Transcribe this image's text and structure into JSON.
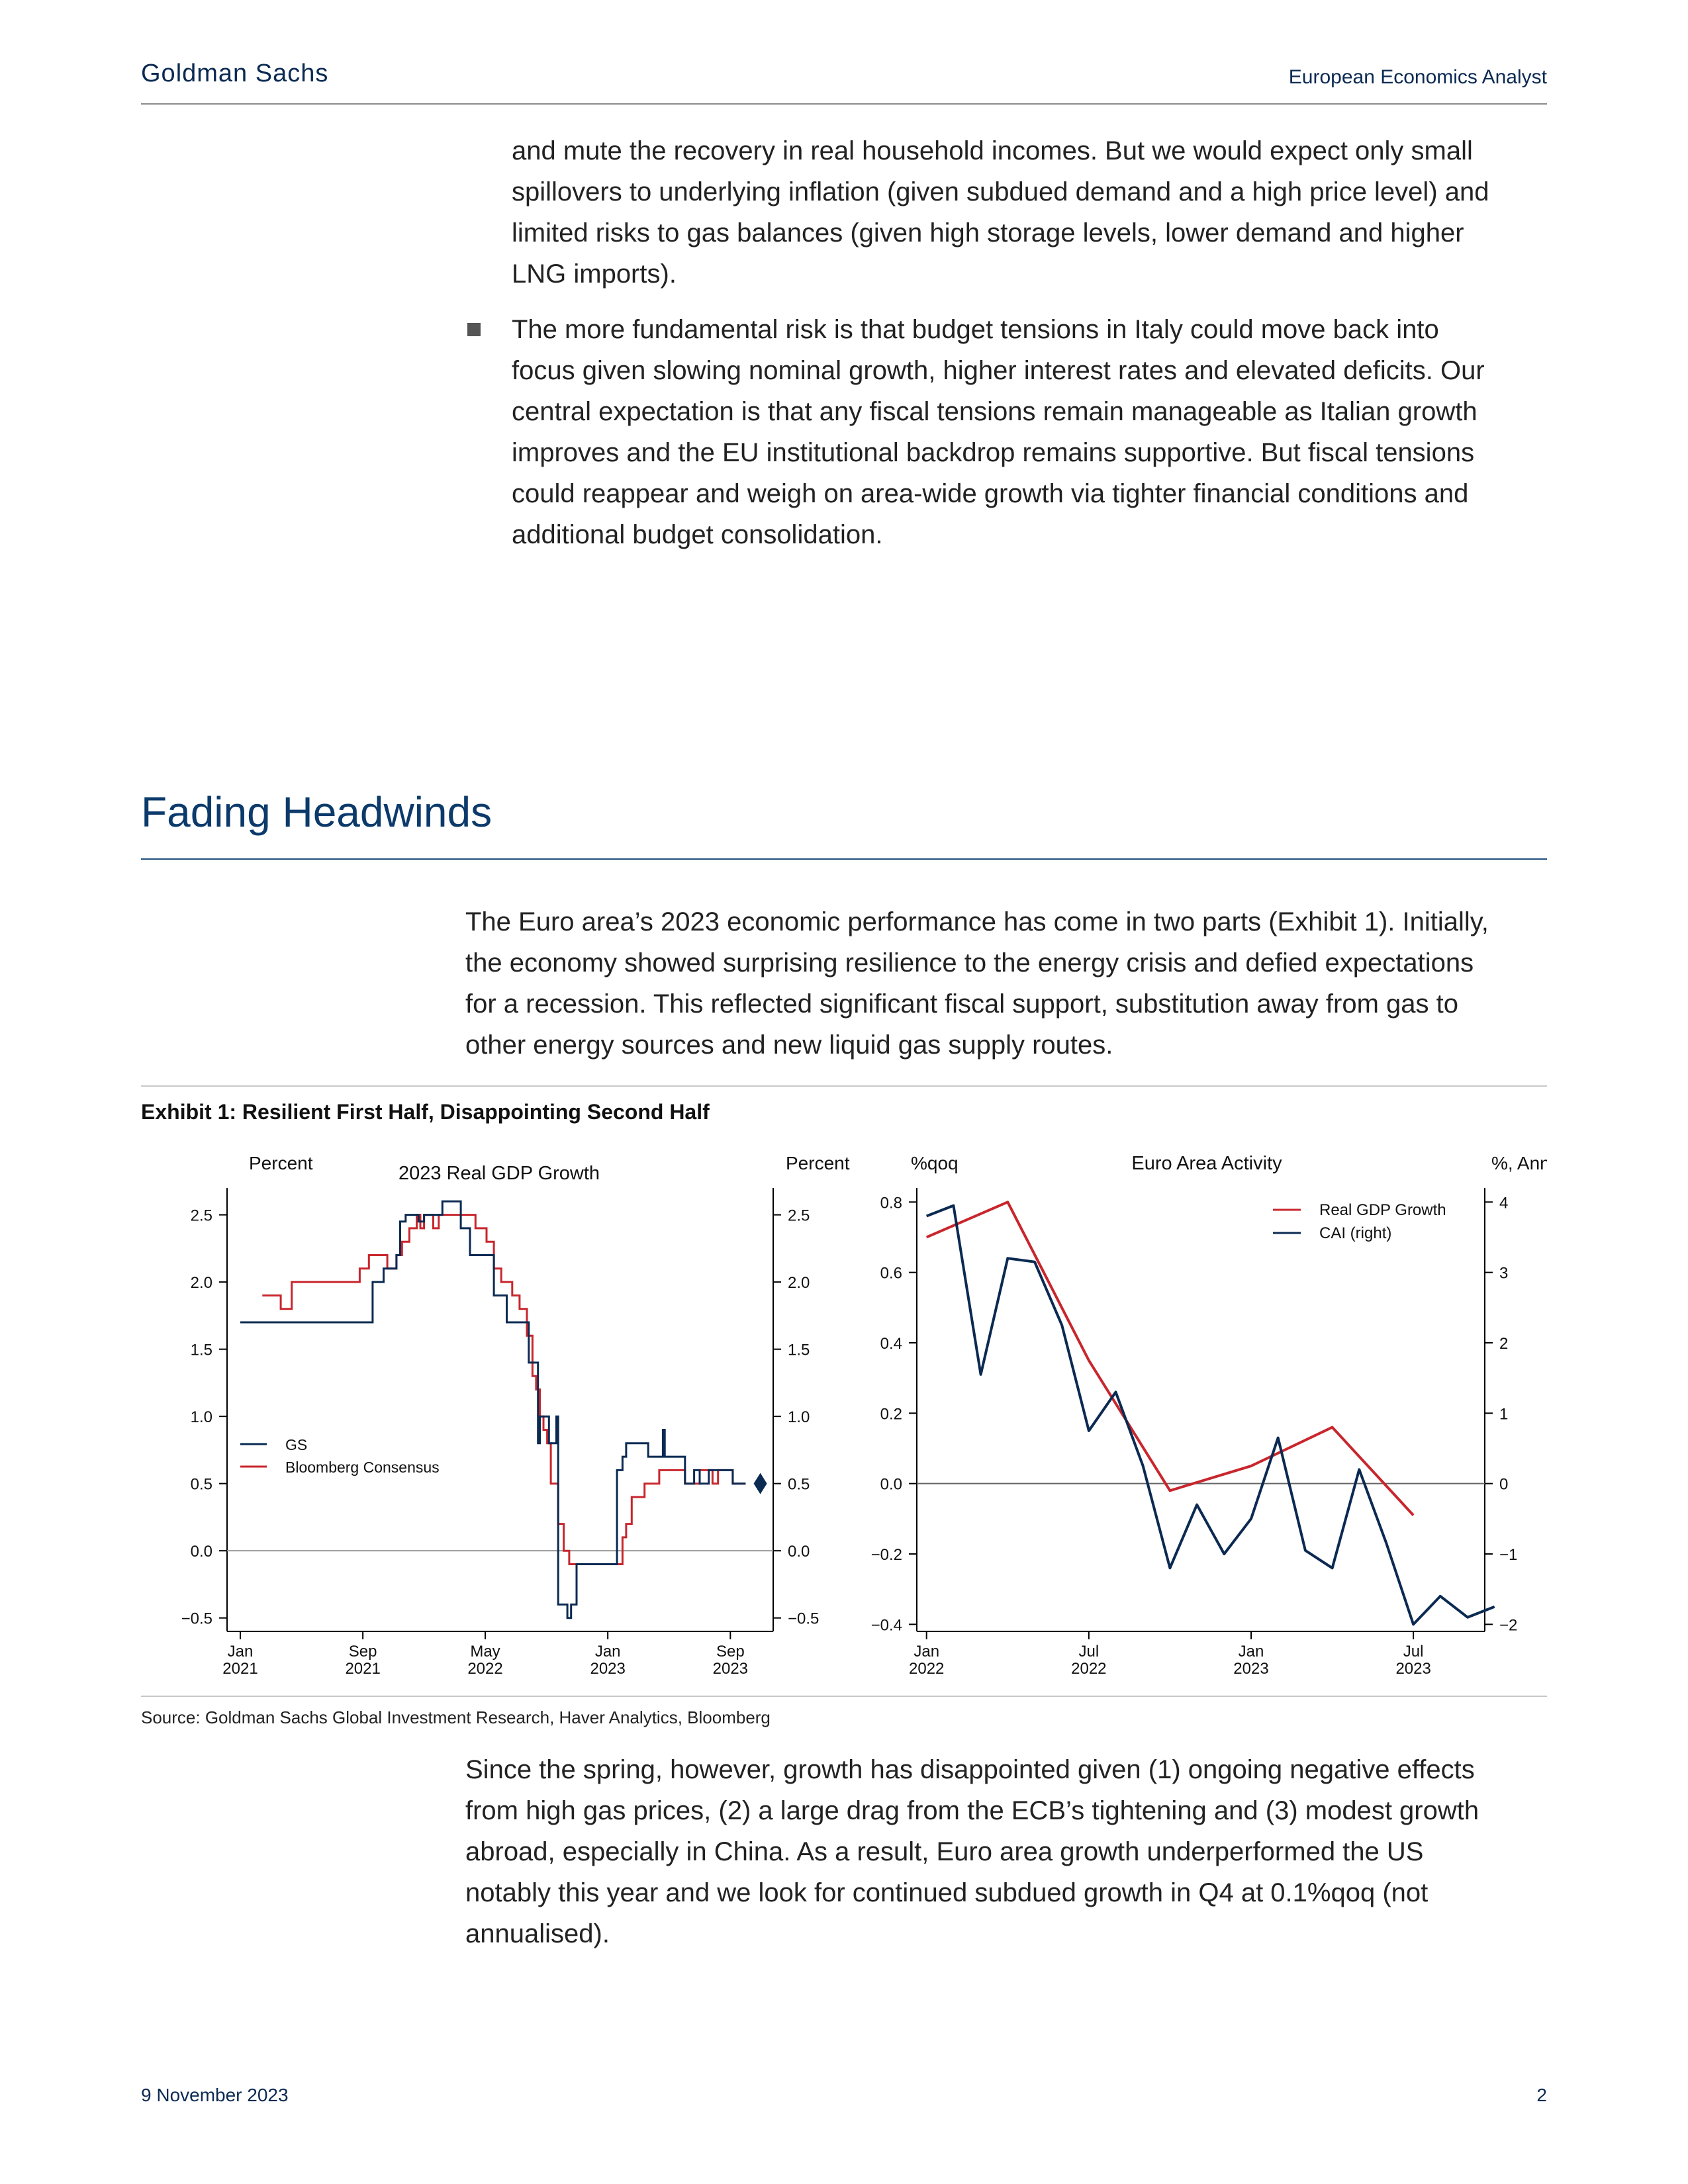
{
  "header": {
    "brand": "Goldman Sachs",
    "publication": "European Economics Analyst"
  },
  "intro_paragraph": [
    "and mute the recovery in real household incomes. But we would expect only small",
    "spillovers to underlying inflation (given subdued demand and a high price level) and",
    "limited risks to gas balances (given high storage levels, lower demand and higher",
    "LNG imports)."
  ],
  "bullet_paragraph": [
    "The more fundamental risk is that budget tensions in Italy could move back into",
    "focus given slowing nominal growth, higher interest rates and elevated deficits. Our",
    "central expectation is that any fiscal tensions remain manageable as Italian growth",
    "improves and the EU institutional backdrop remains supportive. But fiscal tensions",
    "could reappear and weigh on area-wide growth via tighter financial conditions and",
    "additional budget consolidation."
  ],
  "section_title": "Fading Headwinds",
  "section_paragraph_1": [
    "The Euro area’s 2023 economic performance has come in two parts (Exhibit 1). Initially,",
    "the economy showed surprising resilience to the energy crisis and defied expectations",
    "for a recession. This reflected significant fiscal support, substitution away from gas to",
    "other energy sources and new liquid gas supply routes."
  ],
  "exhibit_title": "Exhibit 1: Resilient First Half, Disappointing Second Half",
  "source": "Source: Goldman Sachs Global Investment Research, Haver Analytics, Bloomberg",
  "section_paragraph_2": [
    "Since the spring, however, growth has disappointed given (1) ongoing negative effects",
    "from high gas prices, (2) a large drag from the ECB’s tightening and (3) modest growth",
    "abroad, especially in China. As a result, Euro area growth underperformed the US",
    "notably this year and we look for continued subdued growth in Q4 at 0.1%qoq (not",
    "annualised)."
  ],
  "footer": {
    "date": "9 November 2023",
    "page": "2"
  },
  "colors": {
    "navy": "#0b2a52",
    "red": "#c8262d"
  },
  "chart_data": [
    {
      "type": "line",
      "title": "2023 Real GDP Growth",
      "ylabel_left": "Percent",
      "ylabel_right": "Percent",
      "ylim": [
        -0.6,
        2.7
      ],
      "yticks": [
        "2.5",
        "2.0",
        "1.5",
        "1.0",
        "0.5",
        "0.0",
        "−0.5"
      ],
      "ytick_values": [
        2.5,
        2.0,
        1.5,
        1.0,
        0.5,
        0.0,
        -0.5
      ],
      "xlim": [
        2021.0,
        2023.9
      ],
      "xticks": [
        {
          "x": 2021.0,
          "l1": "Jan",
          "l2": "2021"
        },
        {
          "x": 2021.667,
          "l1": "Sep",
          "l2": "2021"
        },
        {
          "x": 2022.333,
          "l1": "May",
          "l2": "2022"
        },
        {
          "x": 2023.0,
          "l1": "Jan",
          "l2": "2023"
        },
        {
          "x": 2023.667,
          "l1": "Sep",
          "l2": "2023"
        }
      ],
      "legend": [
        "GS",
        "Bloomberg Consensus"
      ],
      "legend_position": "bottom-left",
      "series": [
        {
          "name": "GS",
          "color": "#0b2a52",
          "step": true,
          "points": [
            [
              2021.0,
              1.7
            ],
            [
              2021.72,
              1.7
            ],
            [
              2021.72,
              2.0
            ],
            [
              2021.78,
              2.0
            ],
            [
              2021.78,
              2.1
            ],
            [
              2021.85,
              2.1
            ],
            [
              2021.85,
              2.2
            ],
            [
              2021.87,
              2.2
            ],
            [
              2021.87,
              2.45
            ],
            [
              2021.9,
              2.45
            ],
            [
              2021.9,
              2.5
            ],
            [
              2021.97,
              2.5
            ],
            [
              2021.97,
              2.45
            ],
            [
              2022.0,
              2.45
            ],
            [
              2022.0,
              2.5
            ],
            [
              2022.1,
              2.5
            ],
            [
              2022.1,
              2.6
            ],
            [
              2022.2,
              2.6
            ],
            [
              2022.2,
              2.4
            ],
            [
              2022.25,
              2.4
            ],
            [
              2022.25,
              2.2
            ],
            [
              2022.38,
              2.2
            ],
            [
              2022.38,
              1.9
            ],
            [
              2022.45,
              1.9
            ],
            [
              2022.45,
              1.7
            ],
            [
              2022.57,
              1.7
            ],
            [
              2022.57,
              1.4
            ],
            [
              2022.62,
              1.4
            ],
            [
              2022.62,
              0.8
            ],
            [
              2022.63,
              0.8
            ],
            [
              2022.63,
              1.0
            ],
            [
              2022.68,
              1.0
            ],
            [
              2022.68,
              0.8
            ],
            [
              2022.72,
              0.8
            ],
            [
              2022.72,
              1.0
            ],
            [
              2022.73,
              1.0
            ],
            [
              2022.73,
              -0.4
            ],
            [
              2022.78,
              -0.4
            ],
            [
              2022.78,
              -0.5
            ],
            [
              2022.8,
              -0.5
            ],
            [
              2022.8,
              -0.4
            ],
            [
              2022.83,
              -0.4
            ],
            [
              2022.83,
              -0.1
            ],
            [
              2023.05,
              -0.1
            ],
            [
              2023.05,
              0.6
            ],
            [
              2023.08,
              0.6
            ],
            [
              2023.08,
              0.7
            ],
            [
              2023.1,
              0.7
            ],
            [
              2023.1,
              0.8
            ],
            [
              2023.22,
              0.8
            ],
            [
              2023.22,
              0.7
            ],
            [
              2023.3,
              0.7
            ],
            [
              2023.3,
              0.9
            ],
            [
              2023.31,
              0.9
            ],
            [
              2023.31,
              0.7
            ],
            [
              2023.42,
              0.7
            ],
            [
              2023.42,
              0.5
            ],
            [
              2023.47,
              0.5
            ],
            [
              2023.47,
              0.6
            ],
            [
              2023.5,
              0.6
            ],
            [
              2023.5,
              0.5
            ],
            [
              2023.55,
              0.5
            ],
            [
              2023.55,
              0.6
            ],
            [
              2023.68,
              0.6
            ],
            [
              2023.68,
              0.5
            ],
            [
              2023.75,
              0.5
            ]
          ]
        },
        {
          "name": "Bloomberg Consensus",
          "color": "#c8262d",
          "step": true,
          "points": [
            [
              2021.12,
              1.9
            ],
            [
              2021.22,
              1.9
            ],
            [
              2021.22,
              1.8
            ],
            [
              2021.28,
              1.8
            ],
            [
              2021.28,
              2.0
            ],
            [
              2021.65,
              2.0
            ],
            [
              2021.65,
              2.1
            ],
            [
              2021.7,
              2.1
            ],
            [
              2021.7,
              2.2
            ],
            [
              2021.8,
              2.2
            ],
            [
              2021.8,
              2.1
            ],
            [
              2021.85,
              2.1
            ],
            [
              2021.85,
              2.2
            ],
            [
              2021.88,
              2.2
            ],
            [
              2021.88,
              2.3
            ],
            [
              2021.92,
              2.3
            ],
            [
              2021.92,
              2.4
            ],
            [
              2021.96,
              2.4
            ],
            [
              2021.96,
              2.5
            ],
            [
              2021.98,
              2.5
            ],
            [
              2021.98,
              2.4
            ],
            [
              2022.0,
              2.4
            ],
            [
              2022.0,
              2.5
            ],
            [
              2022.05,
              2.5
            ],
            [
              2022.05,
              2.4
            ],
            [
              2022.08,
              2.4
            ],
            [
              2022.08,
              2.5
            ],
            [
              2022.28,
              2.5
            ],
            [
              2022.28,
              2.4
            ],
            [
              2022.34,
              2.4
            ],
            [
              2022.34,
              2.3
            ],
            [
              2022.38,
              2.3
            ],
            [
              2022.38,
              2.1
            ],
            [
              2022.42,
              2.1
            ],
            [
              2022.42,
              2.0
            ],
            [
              2022.48,
              2.0
            ],
            [
              2022.48,
              1.9
            ],
            [
              2022.52,
              1.9
            ],
            [
              2022.52,
              1.8
            ],
            [
              2022.56,
              1.8
            ],
            [
              2022.56,
              1.6
            ],
            [
              2022.59,
              1.6
            ],
            [
              2022.59,
              1.3
            ],
            [
              2022.61,
              1.3
            ],
            [
              2022.61,
              1.2
            ],
            [
              2022.63,
              1.2
            ],
            [
              2022.63,
              1.0
            ],
            [
              2022.65,
              1.0
            ],
            [
              2022.65,
              0.9
            ],
            [
              2022.67,
              0.9
            ],
            [
              2022.67,
              0.8
            ],
            [
              2022.69,
              0.8
            ],
            [
              2022.69,
              0.5
            ],
            [
              2022.73,
              0.5
            ],
            [
              2022.73,
              0.2
            ],
            [
              2022.76,
              0.2
            ],
            [
              2022.76,
              0.0
            ],
            [
              2022.79,
              0.0
            ],
            [
              2022.79,
              -0.1
            ],
            [
              2023.08,
              -0.1
            ],
            [
              2023.08,
              0.1
            ],
            [
              2023.1,
              0.1
            ],
            [
              2023.1,
              0.2
            ],
            [
              2023.13,
              0.2
            ],
            [
              2023.13,
              0.4
            ],
            [
              2023.2,
              0.4
            ],
            [
              2023.2,
              0.5
            ],
            [
              2023.28,
              0.5
            ],
            [
              2023.28,
              0.6
            ],
            [
              2023.42,
              0.6
            ],
            [
              2023.42,
              0.5
            ],
            [
              2023.5,
              0.5
            ],
            [
              2023.5,
              0.6
            ],
            [
              2023.57,
              0.6
            ],
            [
              2023.57,
              0.5
            ],
            [
              2023.6,
              0.5
            ],
            [
              2023.6,
              0.6
            ],
            [
              2023.68,
              0.6
            ],
            [
              2023.68,
              0.5
            ],
            [
              2023.75,
              0.5
            ]
          ]
        }
      ],
      "marker": {
        "shape": "diamond",
        "x": 2023.83,
        "y": 0.5,
        "color": "#0b2a52"
      }
    },
    {
      "type": "line",
      "title": "Euro Area Activity",
      "ylabel_left": "%qoq",
      "ylabel_right": "%, Annual Rate",
      "ylim_left": [
        -0.42,
        0.84
      ],
      "ylim_right": [
        -2.1,
        4.2
      ],
      "yticks_left": [
        "0.8",
        "0.6",
        "0.4",
        "0.2",
        "0.0",
        "−0.2",
        "−0.4"
      ],
      "ytick_values_left": [
        0.8,
        0.6,
        0.4,
        0.2,
        0.0,
        -0.2,
        -0.4
      ],
      "yticks_right": [
        "4",
        "3",
        "2",
        "1",
        "0",
        "−1",
        "−2"
      ],
      "ytick_values_right": [
        4,
        3,
        2,
        1,
        0,
        -1,
        -2
      ],
      "xlim": [
        2021.97,
        2023.72
      ],
      "xticks": [
        {
          "x": 2022.0,
          "l1": "Jan",
          "l2": "2022"
        },
        {
          "x": 2022.5,
          "l1": "Jul",
          "l2": "2022"
        },
        {
          "x": 2023.0,
          "l1": "Jan",
          "l2": "2023"
        },
        {
          "x": 2023.5,
          "l1": "Jul",
          "l2": "2023"
        }
      ],
      "legend": [
        "Real GDP Growth",
        "CAI (right)"
      ],
      "legend_position": "top-right",
      "series": [
        {
          "name": "Real GDP Growth",
          "color": "#c8262d",
          "axis": "left",
          "points": [
            [
              2022.0,
              0.7
            ],
            [
              2022.25,
              0.8
            ],
            [
              2022.5,
              0.35
            ],
            [
              2022.75,
              -0.02
            ],
            [
              2023.0,
              0.05
            ],
            [
              2023.25,
              0.16
            ],
            [
              2023.5,
              -0.09
            ]
          ]
        },
        {
          "name": "CAI (right)",
          "color": "#0b2a52",
          "axis": "right",
          "points": [
            [
              2022.0,
              3.8
            ],
            [
              2022.083,
              3.95
            ],
            [
              2022.167,
              1.55
            ],
            [
              2022.25,
              3.2
            ],
            [
              2022.333,
              3.15
            ],
            [
              2022.417,
              2.25
            ],
            [
              2022.5,
              0.75
            ],
            [
              2022.583,
              1.3
            ],
            [
              2022.667,
              0.25
            ],
            [
              2022.75,
              -1.2
            ],
            [
              2022.833,
              -0.3
            ],
            [
              2022.917,
              -1.0
            ],
            [
              2023.0,
              -0.5
            ],
            [
              2023.083,
              0.65
            ],
            [
              2023.167,
              -0.95
            ],
            [
              2023.25,
              -1.2
            ],
            [
              2023.333,
              0.2
            ],
            [
              2023.417,
              -0.85
            ],
            [
              2023.5,
              -2.0
            ],
            [
              2023.583,
              -1.6
            ],
            [
              2023.667,
              -1.9
            ],
            [
              2023.75,
              -1.75
            ]
          ]
        }
      ]
    }
  ]
}
